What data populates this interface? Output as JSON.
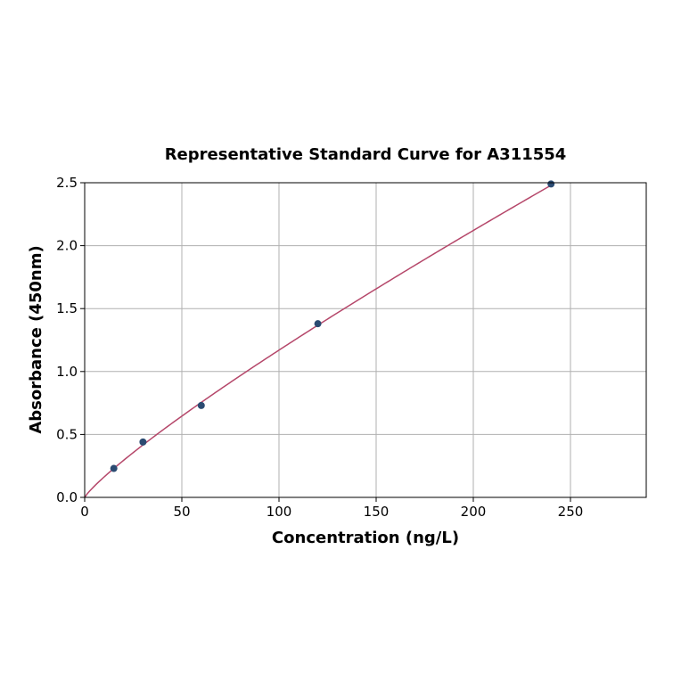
{
  "chart_data": {
    "type": "scatter",
    "title": "Representative Standard Curve for A311554",
    "xlabel": "Concentration (ng/L)",
    "ylabel": "Absorbance (450nm)",
    "xlim": [
      0,
      289
    ],
    "ylim": [
      0,
      2.5
    ],
    "xticks": [
      0,
      50,
      100,
      150,
      200,
      250
    ],
    "yticks": [
      0.0,
      0.5,
      1.0,
      1.5,
      2.0,
      2.5
    ],
    "grid": true,
    "x": [
      15,
      30,
      60,
      120,
      240
    ],
    "y": [
      0.23,
      0.44,
      0.73,
      1.38,
      2.49
    ],
    "fit": {
      "model": "power",
      "a": 0.0225,
      "b": 0.858,
      "x_range": [
        0,
        240
      ]
    },
    "colors": {
      "points": "#2b4b72",
      "curve": "#b5476a",
      "grid": "#b0b0b0"
    }
  }
}
